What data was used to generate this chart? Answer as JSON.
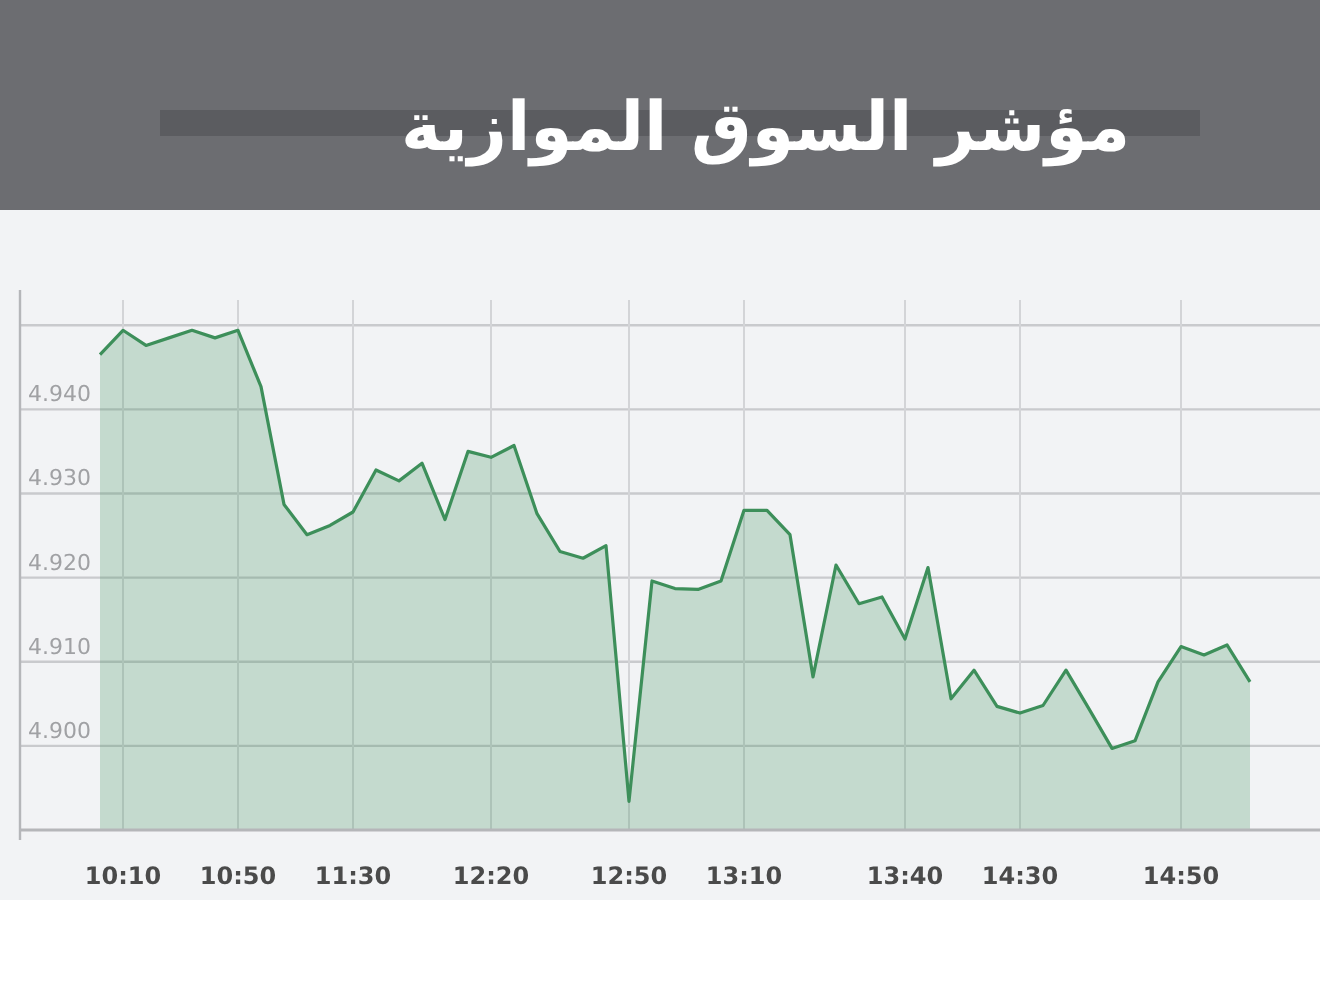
{
  "chart_data": {
    "type": "area",
    "title": "مؤشر السوق الموازية",
    "categories": [
      null,
      "10:10",
      null,
      null,
      null,
      null,
      "10:50",
      null,
      null,
      null,
      null,
      "11:30",
      null,
      null,
      null,
      null,
      null,
      "12:20",
      null,
      null,
      null,
      null,
      null,
      "12:50",
      null,
      null,
      null,
      null,
      "13:10",
      null,
      null,
      null,
      null,
      null,
      null,
      "13:40",
      null,
      null,
      null,
      null,
      "14:30",
      null,
      null,
      null,
      null,
      null,
      null,
      "14:50",
      null,
      null,
      null
    ],
    "series": [
      {
        "color": "#3d8f5a",
        "values": [
          4.9465,
          4.9494,
          4.9476,
          4.9485,
          4.9494,
          4.9485,
          4.9494,
          4.9427,
          4.9287,
          4.9251,
          4.9262,
          4.9278,
          4.9328,
          4.9315,
          4.9336,
          4.9269,
          4.935,
          4.9343,
          4.9357,
          4.9276,
          4.9231,
          4.9223,
          4.9238,
          4.8934,
          4.9196,
          4.9187,
          4.9186,
          4.9196,
          4.928,
          4.928,
          4.9251,
          4.9082,
          4.9215,
          4.9169,
          4.9177,
          4.9127,
          4.9212,
          4.9056,
          4.909,
          4.9047,
          4.9039,
          4.9048,
          4.909,
          4.9044,
          4.8997,
          4.9006,
          4.9076,
          4.9118,
          4.9108,
          4.912,
          4.9076
        ]
      }
    ],
    "ylim": [
      4.89,
      4.953
    ],
    "yticks": [
      {
        "value": 4.9,
        "label": "4.900"
      },
      {
        "value": 4.91,
        "label": "4.910"
      },
      {
        "value": 4.92,
        "label": "4.920"
      },
      {
        "value": 4.93,
        "label": "4.930"
      },
      {
        "value": 4.94,
        "label": "4.940"
      },
      {
        "value": 4.95,
        "label": null
      }
    ],
    "grid": true
  }
}
